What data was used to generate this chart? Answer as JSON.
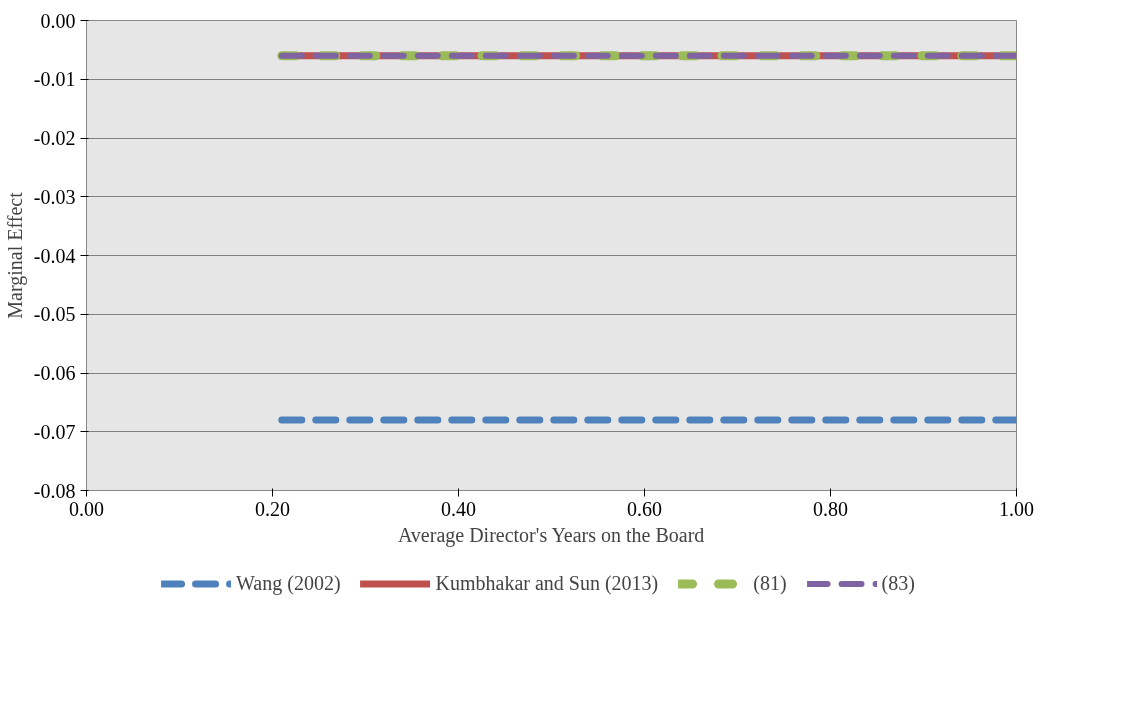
{
  "chart_data": {
    "type": "line",
    "xlabel": "Average Director's Years on the Board",
    "ylabel": "Marginal Effect",
    "xlim": [
      0,
      1
    ],
    "xticks": [
      {
        "value": 0,
        "label": "0.00"
      },
      {
        "value": 0.2,
        "label": "0.20"
      },
      {
        "value": 0.4,
        "label": "0.40"
      },
      {
        "value": 0.6,
        "label": "0.60"
      },
      {
        "value": 0.8,
        "label": "0.80"
      },
      {
        "value": 1,
        "label": "1.00"
      }
    ],
    "ylim": [
      -0.08,
      0
    ],
    "yticks": [
      {
        "value": 0,
        "label": "0.00"
      },
      {
        "value": -0.01,
        "label": "-0.01"
      },
      {
        "value": -0.02,
        "label": "-0.02"
      },
      {
        "value": -0.03,
        "label": "-0.03"
      },
      {
        "value": -0.04,
        "label": "-0.04"
      },
      {
        "value": -0.05,
        "label": "-0.05"
      },
      {
        "value": -0.06,
        "label": "-0.06"
      },
      {
        "value": -0.07,
        "label": "-0.07"
      },
      {
        "value": -0.08,
        "label": "-0.08"
      }
    ],
    "grid": "y",
    "legend": "bottom",
    "x": [
      0.21,
      1.0
    ],
    "series": [
      {
        "name": "Wang (2002)",
        "color": "#4f81bd",
        "values": [
          -0.068,
          -0.068
        ],
        "line_style": "dashed"
      },
      {
        "name": "Kumbhakar and Sun (2013)",
        "color": "#c0504d",
        "values": [
          -0.006,
          -0.006
        ],
        "line_style": "solid"
      },
      {
        "name": "(81)",
        "color": "#9bbb59",
        "values": [
          -0.006,
          -0.006
        ],
        "line_style": "dashed"
      },
      {
        "name": "(83)",
        "color": "#8064a2",
        "values": [
          -0.006,
          -0.006
        ],
        "line_style": "dashed"
      }
    ]
  }
}
